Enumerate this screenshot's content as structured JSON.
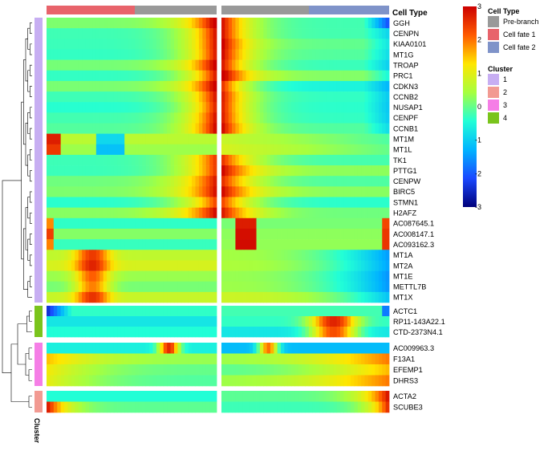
{
  "chart_data": {
    "type": "heatmap",
    "cell_type_header": "Cell Type",
    "cluster_axis_label": "Cluster",
    "cell_type_legend": {
      "title": "Cell Type",
      "items": [
        {
          "label": "Pre-branch",
          "color": "#999999"
        },
        {
          "label": "Cell fate 1",
          "color": "#e8636b"
        },
        {
          "label": "Cell fate 2",
          "color": "#7f93c9"
        }
      ]
    },
    "cluster_legend": {
      "title": "Cluster",
      "items": [
        {
          "label": "1",
          "color": "#c7aef2"
        },
        {
          "label": "2",
          "color": "#f29a92"
        },
        {
          "label": "3",
          "color": "#f57ee6"
        },
        {
          "label": "4",
          "color": "#7ac41c"
        }
      ]
    },
    "colorbar": {
      "min": -3,
      "max": 3,
      "ticks": [
        "3",
        "2",
        "1",
        "0",
        "-1",
        "-2",
        "-3"
      ],
      "stops": [
        "#cc0000",
        "#ff5a00",
        "#ffe600",
        "#a6ff3f",
        "#22ffd6",
        "#00b4ff",
        "#1a48ff",
        "#00007a"
      ]
    },
    "column_split": [
      "Cell fate 1",
      "Cell fate 2"
    ],
    "row_blocks": [
      {
        "cluster": "1",
        "genes": [
          "GGH",
          "CENPN",
          "KIAA0101",
          "MT1G",
          "TROAP",
          "PRC1",
          "CDKN3",
          "CCNB2",
          "NUSAP1",
          "CENPF",
          "CCNB1",
          "MT1M",
          "MT1L",
          "TK1",
          "PTTG1",
          "CENPW",
          "BIRC5",
          "STMN1",
          "H2AFZ",
          "AC087645.1",
          "AC008147.1",
          "AC093162.3",
          "MT1A",
          "MT2A",
          "MT1E",
          "METTL7B",
          "MT1X"
        ]
      },
      {
        "cluster": "4",
        "genes": [
          "ACTC1",
          "RP11-143A22.1",
          "CTD-2373N4.1"
        ]
      },
      {
        "cluster": "3",
        "genes": [
          "AC009963.3",
          "F13A1",
          "EFEMP1",
          "DHRS3"
        ]
      },
      {
        "cluster": "2",
        "genes": [
          "ACTA2",
          "SCUBE3"
        ]
      }
    ]
  }
}
